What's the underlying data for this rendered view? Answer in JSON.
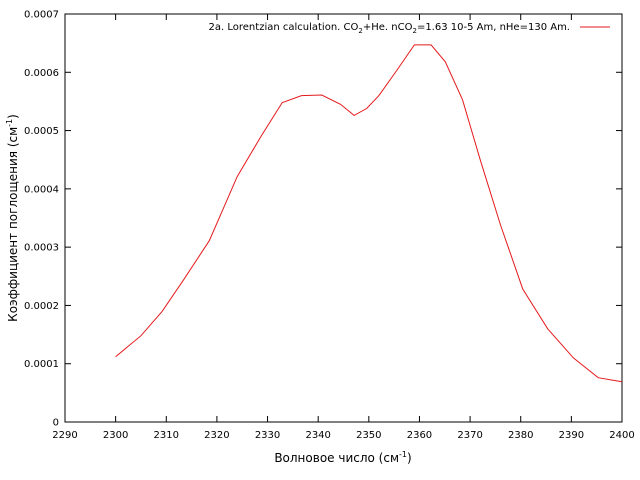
{
  "chart_data": {
    "type": "line",
    "xlabel": {
      "main": "Волновое число (см",
      "sup": "-1",
      "close": ")"
    },
    "ylabel": {
      "main": "Коэффициент поглощения (см",
      "sup": "-1",
      "close": ")"
    },
    "xlim": [
      2290,
      2400
    ],
    "ylim": [
      0,
      0.0007
    ],
    "xticks": [
      "2290",
      "2300",
      "2310",
      "2320",
      "2330",
      "2340",
      "2350",
      "2360",
      "2370",
      "2380",
      "2390",
      "2400"
    ],
    "yticks": [
      "0",
      "0.0001",
      "0.0002",
      "0.0003",
      "0.0004",
      "0.0005",
      "0.0006",
      "0.0007"
    ],
    "grid": false,
    "legend_position": "top-right",
    "legend": {
      "parts": [
        {
          "t": "2a. Lorentzian calculation. CO"
        },
        {
          "t": "2",
          "sub": true
        },
        {
          "t": "+He. nCO"
        },
        {
          "t": "2",
          "sub": true
        },
        {
          "t": "=1.63 10-5 Am, nHe=130 Am."
        }
      ]
    },
    "series": [
      {
        "color": "#e41a1c",
        "x": [
          2300.0,
          2305.0,
          2309.2,
          2313.5,
          2318.5,
          2324.0,
          2328.7,
          2332.9,
          2336.7,
          2340.7,
          2344.4,
          2347.1,
          2349.6,
          2352.0,
          2355.5,
          2359.0,
          2362.3,
          2365.1,
          2368.5,
          2372.0,
          2376.0,
          2380.4,
          2385.3,
          2390.4,
          2395.3,
          2400.0
        ],
        "y": [
          0.000112,
          0.000148,
          0.00019,
          0.000245,
          0.000311,
          0.000421,
          0.00049,
          0.000548,
          0.00056,
          0.000561,
          0.000545,
          0.000526,
          0.000538,
          0.00056,
          0.000603,
          0.000647,
          0.000647,
          0.000618,
          0.000553,
          0.00045,
          0.000338,
          0.000228,
          0.00016,
          0.00011,
          7.6e-05,
          6.9e-05
        ]
      }
    ]
  }
}
